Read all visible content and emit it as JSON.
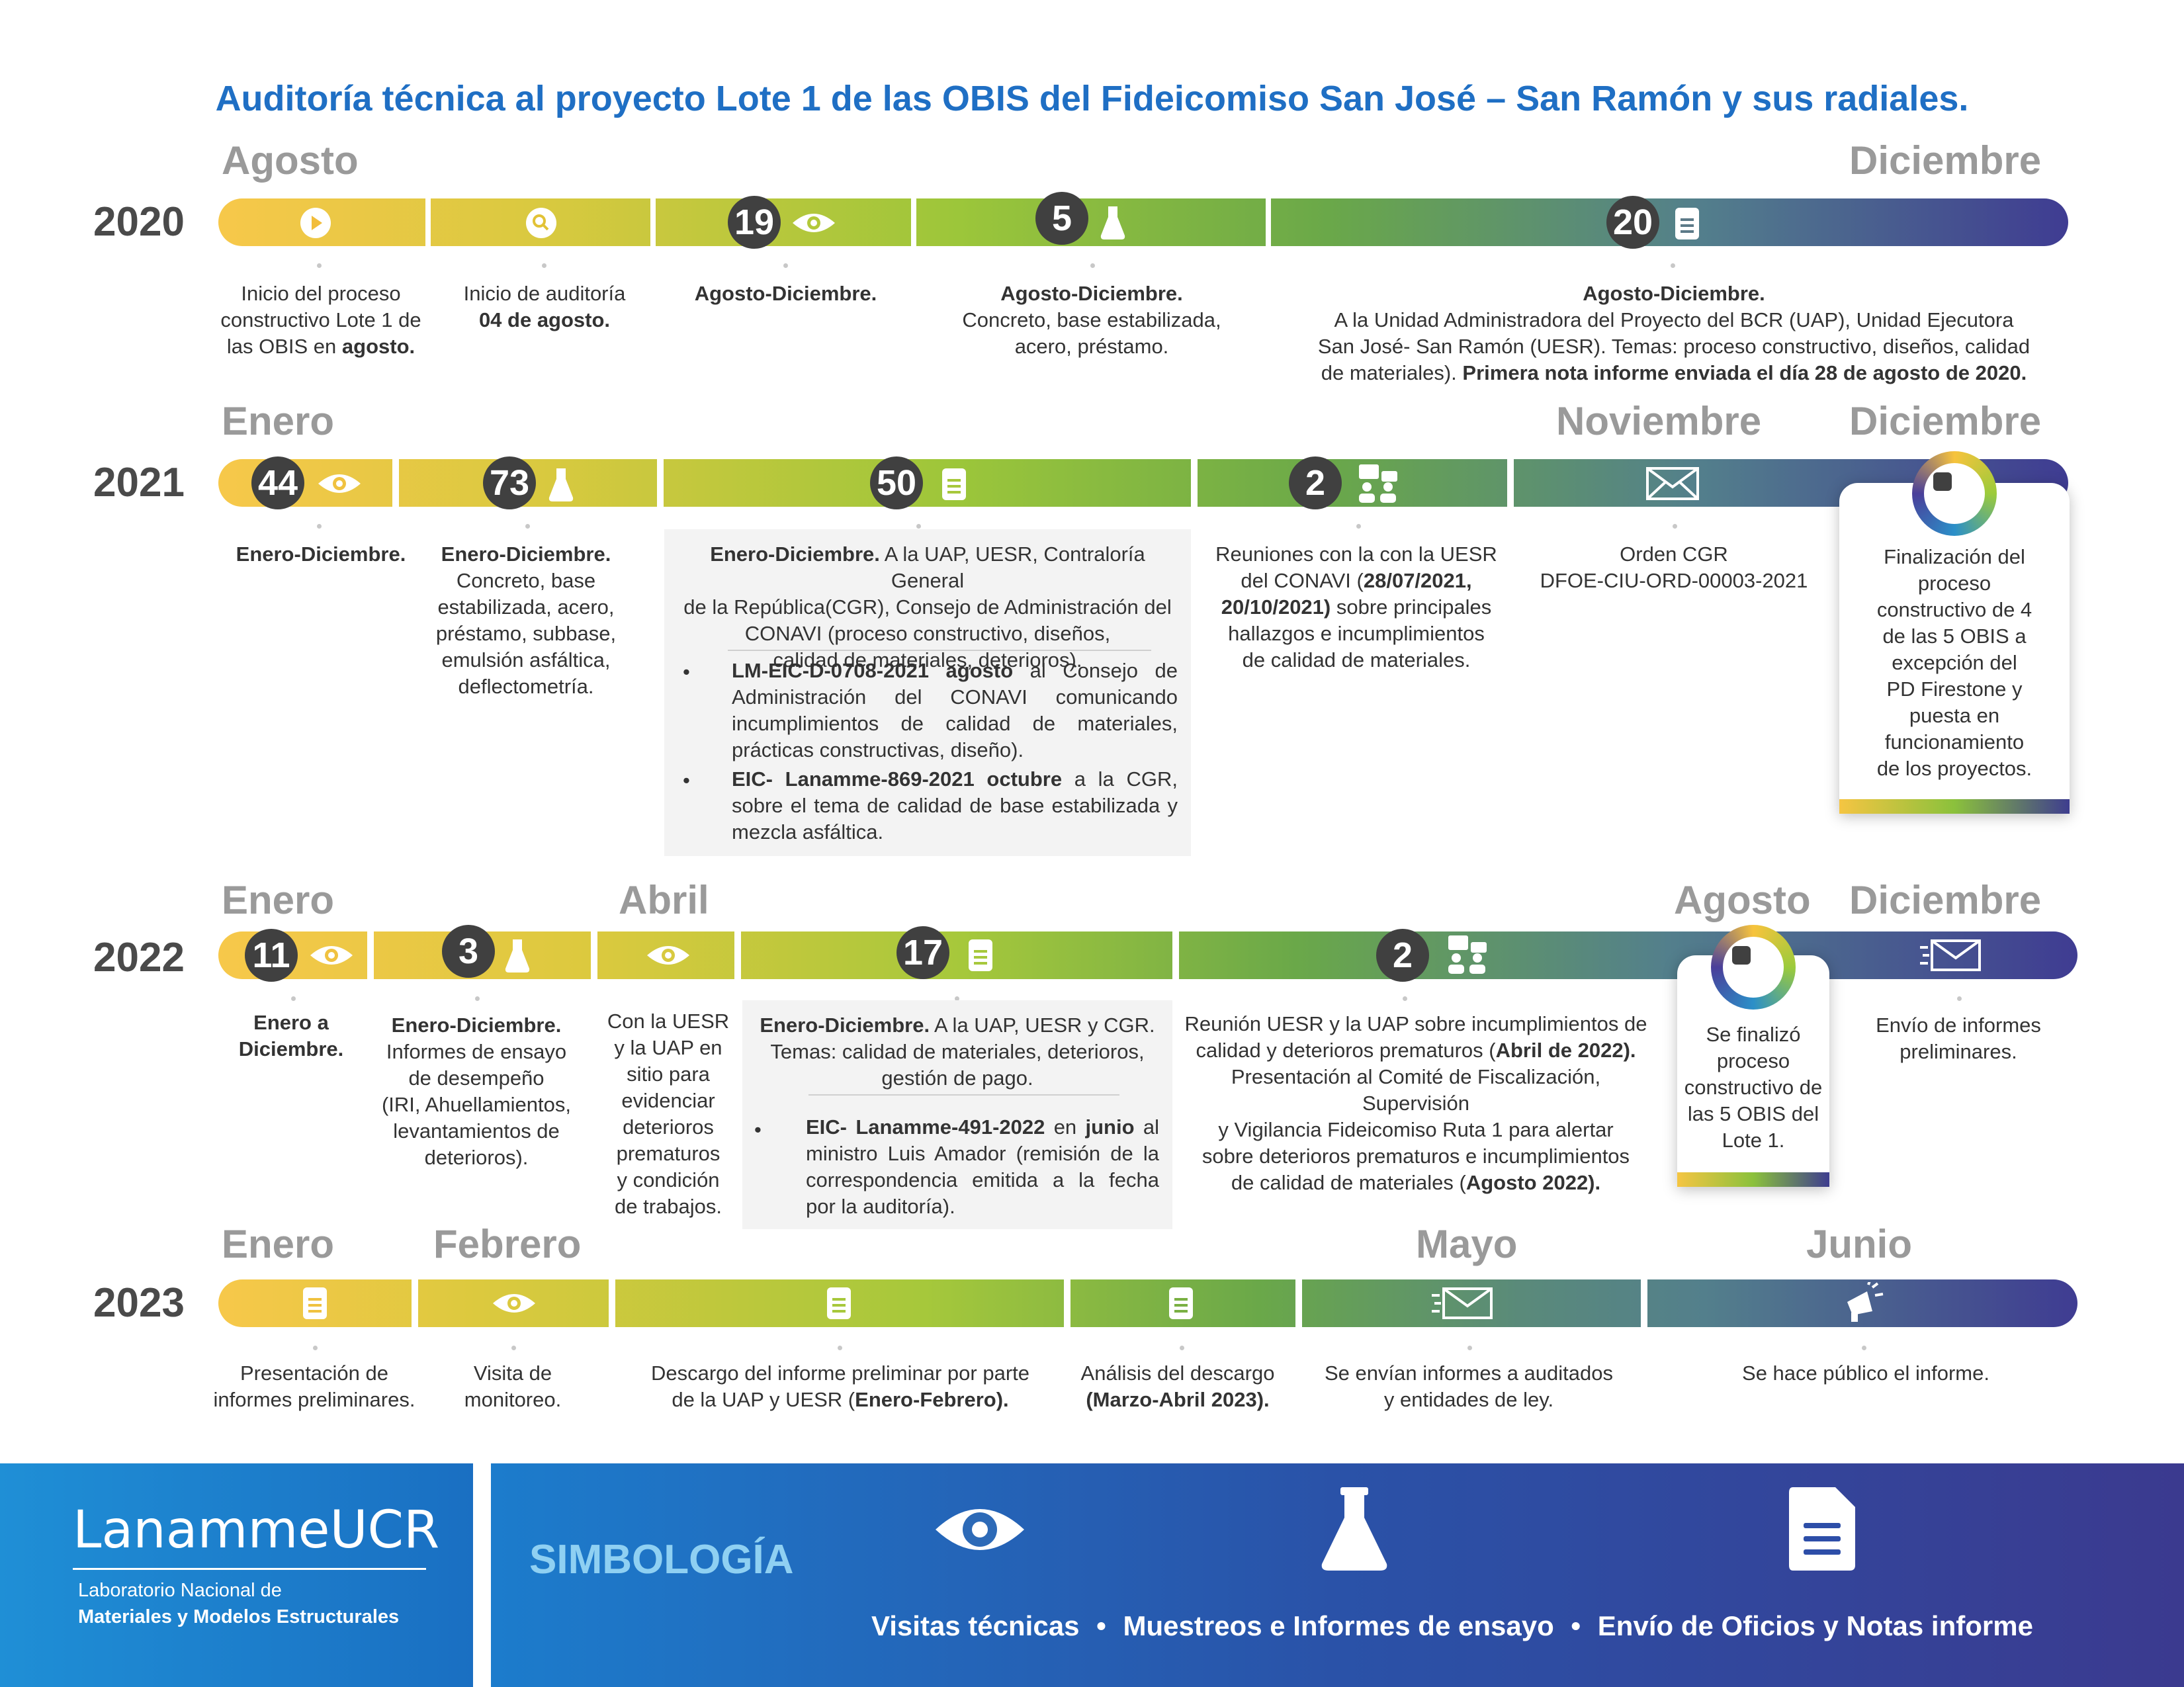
{
  "title": "Auditoría técnica al proyecto Lote 1 de las OBIS del Fideicomiso San José – San Ramón y sus radiales.",
  "colors": {
    "title": "#1f6fc4",
    "year": "#4a4a4a",
    "month": "#9a9a9a",
    "badge": "#404040",
    "gradient_start": "#f5c542",
    "gradient_mid": "#8bc13c",
    "gradient_end": "#3e3d8f"
  },
  "rows": {
    "r2020": {
      "year": "2020",
      "month_left": "Agosto",
      "month_right": "Diciembre",
      "badges": [
        "19",
        "5",
        "20"
      ],
      "texts": {
        "t1": [
          "Inicio del proceso",
          "constructivo Lote 1 de",
          "las OBIS en ",
          "agosto."
        ],
        "t2": [
          "Inicio de auditoría",
          "04 de agosto."
        ],
        "t3": "Agosto-Diciembre.",
        "t4": [
          "Agosto-Diciembre.",
          "Concreto, base estabilizada,",
          "acero, préstamo."
        ],
        "t5": [
          "Agosto-Diciembre.",
          "A la Unidad Administradora del Proyecto del BCR (UAP), Unidad Ejecutora",
          "San José- San Ramón (UESR). Temas: proceso constructivo, diseños, calidad",
          "de materiales). ",
          "Primera nota informe enviada el día 28 de agosto de 2020."
        ]
      }
    },
    "r2021": {
      "year": "2021",
      "month_left": "Enero",
      "month_mid": "Noviembre",
      "month_right": "Diciembre",
      "badges": [
        "44",
        "73",
        "50",
        "2"
      ],
      "texts": {
        "t1": "Enero-Diciembre.",
        "t2": [
          "Enero-Diciembre.",
          "Concreto, base",
          "estabilizada, acero,",
          "préstamo, subbase,",
          "emulsión asfáltica,",
          "deflectometría."
        ],
        "t3": [
          "Enero-Diciembre.",
          " A la UAP, UESR, Contraloría General",
          "de la República(CGR), Consejo de Administración del",
          "CONAVI (proceso constructivo, diseños,",
          "calidad de materiales, deterioros)."
        ],
        "b1": [
          "LM-EIC-D-0708-2021 agosto",
          " al Consejo de Administración del CONAVI comunicando incumplimientos de calidad de materiales, prácticas constructivas, diseño)."
        ],
        "b2": [
          "EIC- Lanamme-869-2021  octubre",
          " a la CGR, sobre el tema de calidad de base estabilizada y mezcla asfáltica."
        ],
        "t4": [
          "Reuniones con la con la UESR",
          "del CONAVI (",
          "28/07/2021,",
          "20/10/2021)",
          " sobre principales",
          "hallazgos e incumplimientos",
          "de calidad de materiales."
        ],
        "t5": [
          "Orden CGR",
          "DFOE-CIU-ORD-00003-2021"
        ],
        "card": [
          "Finalización del",
          "proceso",
          "constructivo de 4",
          "de las 5 OBIS a",
          "excepción del",
          "PD Firestone y",
          "puesta en",
          "funcionamiento",
          "de los proyectos."
        ]
      }
    },
    "r2022": {
      "year": "2022",
      "month_left": "Enero",
      "month_mid": "Abril",
      "month_mid2": "Agosto",
      "month_right": "Diciembre",
      "badges": [
        "11",
        "3",
        "17",
        "2"
      ],
      "texts": {
        "t1": [
          "Enero a",
          "Diciembre."
        ],
        "t2": [
          "Enero-Diciembre.",
          "Informes de ensayo",
          "de desempeño",
          "(IRI, Ahuellamientos,",
          "levantamientos de",
          "deterioros)."
        ],
        "t3": [
          "Con la UESR",
          "y la UAP en",
          "sitio para",
          "evidenciar",
          "deterioros",
          "prematuros",
          "y condición",
          "de trabajos."
        ],
        "t4": [
          "Enero-Diciembre.",
          " A la UAP, UESR y CGR.",
          "Temas: calidad de materiales, deterioros,",
          "gestión de pago."
        ],
        "b1": [
          "EIC- Lanamme-491-2022",
          " en ",
          "junio",
          " al ministro Luis Amador (remisión de la correspondencia emitida a la fecha por la auditoría)."
        ],
        "t5": [
          "Reunión UESR y la UAP sobre incumplimientos de",
          "calidad y deterioros prematuros (",
          "Abril de 2022).",
          "Presentación al Comité de Fiscalización, Supervisión",
          "y Vigilancia Fideicomiso Ruta 1 para alertar",
          "sobre deterioros prematuros e incumplimientos",
          "de calidad de materiales (",
          "Agosto 2022)."
        ],
        "card": [
          "Se finalizó",
          "proceso",
          "constructivo de",
          "las 5 OBIS del",
          "Lote 1."
        ],
        "t6": [
          "Envío de informes",
          "preliminares."
        ]
      }
    },
    "r2023": {
      "year": "2023",
      "month_left": "Enero",
      "month_mid": "Febrero",
      "month_mid2": "Mayo",
      "month_right": "Junio",
      "texts": {
        "t1": [
          "Presentación de",
          "informes preliminares."
        ],
        "t2": [
          "Visita de",
          "monitoreo."
        ],
        "t3": [
          "Descargo del informe preliminar por parte",
          "de la UAP y UESR (",
          "Enero-Febrero)."
        ],
        "t4": [
          "Análisis del descargo",
          "(Marzo-Abril 2023)."
        ],
        "t5": [
          "Se envían informes a auditados",
          "y entidades de ley."
        ],
        "t6": "Se hace público el informe."
      }
    }
  },
  "footer": {
    "logo": "LanammeUCR",
    "lab_line1": "Laboratorio Nacional de",
    "lab_line2": "Materiales y Modelos Estructurales",
    "legend_title": "SIMBOLOGÍA",
    "legend_items": [
      "Visitas técnicas",
      "Muestreos e Informes de ensayo",
      "Envío de Oficios y Notas informe"
    ],
    "separator": "•",
    "icons": [
      "eye-icon",
      "flask-icon",
      "document-icon"
    ]
  }
}
